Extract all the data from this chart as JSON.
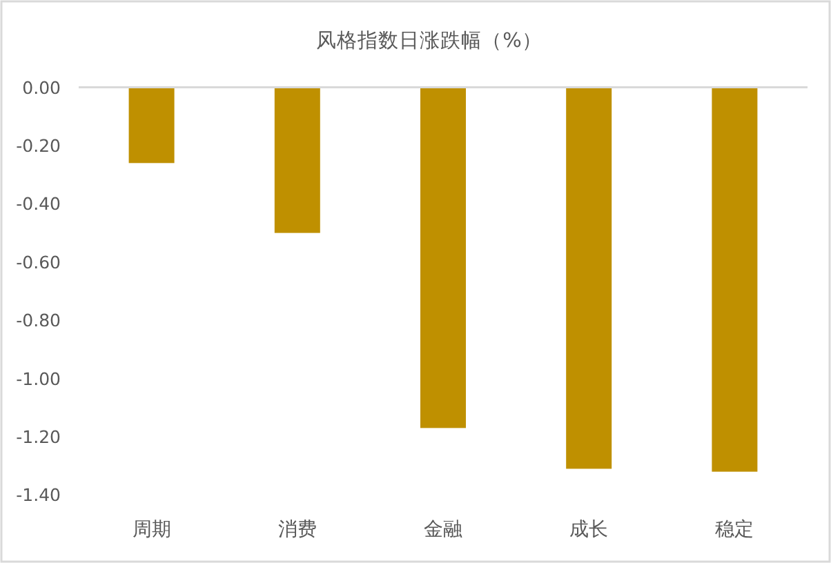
{
  "chart_data": {
    "type": "bar",
    "title": "风格指数日涨跌幅（%）",
    "categories": [
      "周期",
      "消费",
      "金融",
      "成长",
      "稳定"
    ],
    "values": [
      -0.26,
      -0.5,
      -1.17,
      -1.31,
      -1.32
    ],
    "color": "#bf9000",
    "ylim": [
      -1.4,
      0
    ],
    "yticks": [
      {
        "value": 0,
        "label": "0.00"
      },
      {
        "value": -0.2,
        "label": "-0.20"
      },
      {
        "value": -0.4,
        "label": "-0.40"
      },
      {
        "value": -0.6,
        "label": "-0.60"
      },
      {
        "value": -0.8,
        "label": "-0.80"
      },
      {
        "value": -1.0,
        "label": "-1.00"
      },
      {
        "value": -1.2,
        "label": "-1.20"
      },
      {
        "value": -1.4,
        "label": "-1.40"
      }
    ],
    "grid": false
  }
}
